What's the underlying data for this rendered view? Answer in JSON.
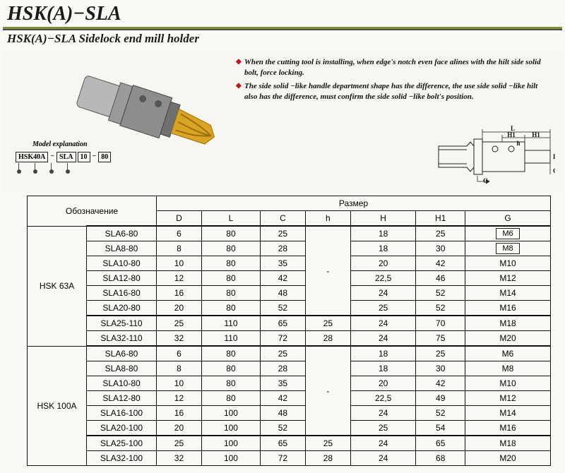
{
  "header": {
    "title": "HSK(A)−SLA",
    "subtitle": "HSK(A)−SLA  Sidelock end mill holder"
  },
  "notes": [
    "When the cutting tool is installing, when edge's notch even face alines with the hilt side solid bolt, force locking.",
    "The side solid −like handle department shape has the difference, the use side solid −like hilt also has the  difference, must confirm the side solid −like bolt's position."
  ],
  "model_explanation": {
    "label": "Model explanation",
    "parts": [
      "HSK40A",
      "SLA",
      "10",
      "80"
    ]
  },
  "tech_drawing": {
    "labels": {
      "L": "L",
      "H1": "H1",
      "h": "h",
      "D": "D",
      "C": "C",
      "G": "G"
    }
  },
  "table": {
    "header_designation": "Обозначение",
    "header_size": "Размер",
    "columns": [
      "D",
      "L",
      "C",
      "h",
      "H",
      "H1",
      "G"
    ],
    "groups": [
      {
        "label": "HSK 63A",
        "blocks": [
          {
            "h_merge": "-",
            "rows": [
              {
                "model": "SLA6-80",
                "D": "6",
                "L": "80",
                "C": "25",
                "H": "18",
                "H1": "25",
                "G": "M6",
                "g_boxed": true
              },
              {
                "model": "SLA8-80",
                "D": "8",
                "L": "80",
                "C": "28",
                "H": "18",
                "H1": "30",
                "G": "M8",
                "g_boxed": true
              },
              {
                "model": "SLA10-80",
                "D": "10",
                "L": "80",
                "C": "35",
                "H": "20",
                "H1": "42",
                "G": "M10"
              },
              {
                "model": "SLA12-80",
                "D": "12",
                "L": "80",
                "C": "42",
                "H": "22,5",
                "H1": "46",
                "G": "M12"
              },
              {
                "model": "SLA16-80",
                "D": "16",
                "L": "80",
                "C": "48",
                "H": "24",
                "H1": "52",
                "G": "M14"
              },
              {
                "model": "SLA20-80",
                "D": "20",
                "L": "80",
                "C": "52",
                "H": "25",
                "H1": "52",
                "G": "M16"
              }
            ]
          },
          {
            "rows": [
              {
                "model": "SLA25-110",
                "D": "25",
                "L": "110",
                "C": "65",
                "h": "25",
                "H": "24",
                "H1": "70",
                "G": "M18"
              },
              {
                "model": "SLA32-110",
                "D": "32",
                "L": "110",
                "C": "72",
                "h": "28",
                "H": "24",
                "H1": "75",
                "G": "M20"
              }
            ]
          }
        ]
      },
      {
        "label": "HSK 100A",
        "blocks": [
          {
            "h_merge": "-",
            "rows": [
              {
                "model": "SLA6-80",
                "D": "6",
                "L": "80",
                "C": "25",
                "H": "18",
                "H1": "25",
                "G": "M6"
              },
              {
                "model": "SLA8-80",
                "D": "8",
                "L": "80",
                "C": "28",
                "H": "18",
                "H1": "30",
                "G": "M8"
              },
              {
                "model": "SLA10-80",
                "D": "10",
                "L": "80",
                "C": "35",
                "H": "20",
                "H1": "42",
                "G": "M10"
              },
              {
                "model": "SLA12-80",
                "D": "12",
                "L": "80",
                "C": "42",
                "H": "22,5",
                "H1": "49",
                "G": "M12"
              },
              {
                "model": "SLA16-100",
                "D": "16",
                "L": "100",
                "C": "48",
                "H": "24",
                "H1": "52",
                "G": "M14"
              },
              {
                "model": "SLA20-100",
                "D": "20",
                "L": "100",
                "C": "52",
                "H": "25",
                "H1": "54",
                "G": "M16"
              }
            ]
          },
          {
            "rows": [
              {
                "model": "SLA25-100",
                "D": "25",
                "L": "100",
                "C": "65",
                "h": "25",
                "H": "24",
                "H1": "65",
                "G": "M18"
              },
              {
                "model": "SLA32-100",
                "D": "32",
                "L": "100",
                "C": "72",
                "h": "28",
                "H": "24",
                "H1": "68",
                "G": "M20"
              }
            ]
          }
        ]
      }
    ]
  },
  "colors": {
    "accent_green": "#7f8f34",
    "diamond": "#c01818",
    "tool_body": "#8d8d8d",
    "tool_tip": "#d9a423",
    "line": "#111111",
    "bg": "#fbf9f5"
  }
}
